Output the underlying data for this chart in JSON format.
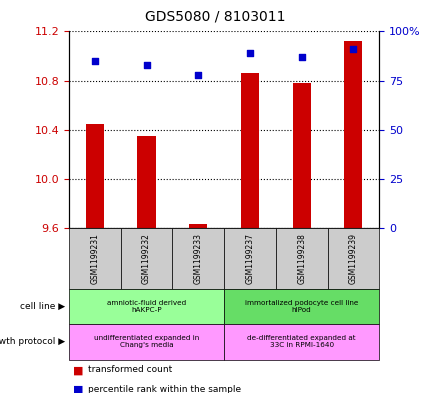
{
  "title": "GDS5080 / 8103011",
  "samples": [
    "GSM1199231",
    "GSM1199232",
    "GSM1199233",
    "GSM1199237",
    "GSM1199238",
    "GSM1199239"
  ],
  "transformed_count": [
    10.45,
    10.35,
    9.63,
    10.86,
    10.78,
    11.12
  ],
  "transformed_count_base": [
    9.6,
    9.6,
    9.6,
    9.6,
    9.6,
    9.6
  ],
  "percentile_rank": [
    85,
    83,
    78,
    89,
    87,
    91
  ],
  "ylim_left": [
    9.6,
    11.2
  ],
  "ylim_right": [
    0,
    100
  ],
  "yticks_left": [
    9.6,
    10.0,
    10.4,
    10.8,
    11.2
  ],
  "yticks_right": [
    0,
    25,
    50,
    75,
    100
  ],
  "ytick_labels_right": [
    "0",
    "25",
    "50",
    "75",
    "100%"
  ],
  "bar_color": "#cc0000",
  "dot_color": "#0000cc",
  "cell_line_groups": [
    {
      "label": "amniotic-fluid derived\nhAKPC-P",
      "start": 0,
      "end": 3,
      "color": "#99ff99"
    },
    {
      "label": "immortalized podocyte cell line\nhIPod",
      "start": 3,
      "end": 6,
      "color": "#66dd66"
    }
  ],
  "growth_protocol_groups": [
    {
      "label": "undifferentiated expanded in\nChang's media",
      "start": 0,
      "end": 3,
      "color": "#ff99ff"
    },
    {
      "label": "de-differentiated expanded at\n33C in RPMI-1640",
      "start": 3,
      "end": 6,
      "color": "#ff99ff"
    }
  ],
  "cell_line_label": "cell line",
  "growth_protocol_label": "growth protocol",
  "legend_red_label": "transformed count",
  "legend_blue_label": "percentile rank within the sample",
  "tick_label_color_left": "#cc0000",
  "tick_label_color_right": "#0000cc"
}
